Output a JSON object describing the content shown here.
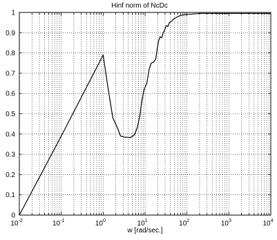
{
  "chart_data": {
    "type": "line",
    "title": "Hinf norm of NcDc",
    "xlabel": "w [rad/sec.]",
    "ylabel": "",
    "x_scale": "log",
    "xlim": [
      0.01,
      10000
    ],
    "ylim": [
      0,
      1
    ],
    "grid": true,
    "x_tick_labels": [
      {
        "base": "10",
        "exp": "-2",
        "value": 0.01
      },
      {
        "base": "10",
        "exp": "-1",
        "value": 0.1
      },
      {
        "base": "10",
        "exp": "0",
        "value": 1
      },
      {
        "base": "10",
        "exp": "1",
        "value": 10
      },
      {
        "base": "10",
        "exp": "2",
        "value": 100
      },
      {
        "base": "10",
        "exp": "3",
        "value": 1000
      },
      {
        "base": "10",
        "exp": "4",
        "value": 10000
      }
    ],
    "y_tick_labels": [
      "0",
      "0.1",
      "0.2",
      "0.3",
      "0.4",
      "0.5",
      "0.6",
      "0.7",
      "0.8",
      "0.9",
      "1"
    ],
    "y_tick_values": [
      0,
      0.1,
      0.2,
      0.3,
      0.4,
      0.5,
      0.6,
      0.7,
      0.8,
      0.9,
      1
    ],
    "series": [
      {
        "color": "#000000",
        "points": [
          [
            0.01,
            0.0
          ],
          [
            0.1,
            0.39
          ],
          [
            1.0,
            0.79
          ],
          [
            1.3,
            0.63
          ],
          [
            1.7,
            0.48
          ],
          [
            2.2,
            0.43
          ],
          [
            2.6,
            0.39
          ],
          [
            3.2,
            0.385
          ],
          [
            4.5,
            0.383
          ],
          [
            5.5,
            0.395
          ],
          [
            6.5,
            0.43
          ],
          [
            7.5,
            0.49
          ],
          [
            8.5,
            0.57
          ],
          [
            9.5,
            0.62
          ],
          [
            11,
            0.65
          ],
          [
            12.5,
            0.72
          ],
          [
            14,
            0.75
          ],
          [
            16,
            0.755
          ],
          [
            18,
            0.77
          ],
          [
            19.5,
            0.82
          ],
          [
            21,
            0.86
          ],
          [
            23,
            0.88
          ],
          [
            25,
            0.875
          ],
          [
            27,
            0.9
          ],
          [
            29,
            0.91
          ],
          [
            32,
            0.935
          ],
          [
            35,
            0.93
          ],
          [
            38,
            0.95
          ],
          [
            42,
            0.955
          ],
          [
            47,
            0.965
          ],
          [
            55,
            0.975
          ],
          [
            70,
            0.985
          ],
          [
            100,
            0.99
          ],
          [
            200,
            0.995
          ],
          [
            1000,
            0.995
          ],
          [
            10000,
            0.995
          ]
        ]
      }
    ]
  }
}
